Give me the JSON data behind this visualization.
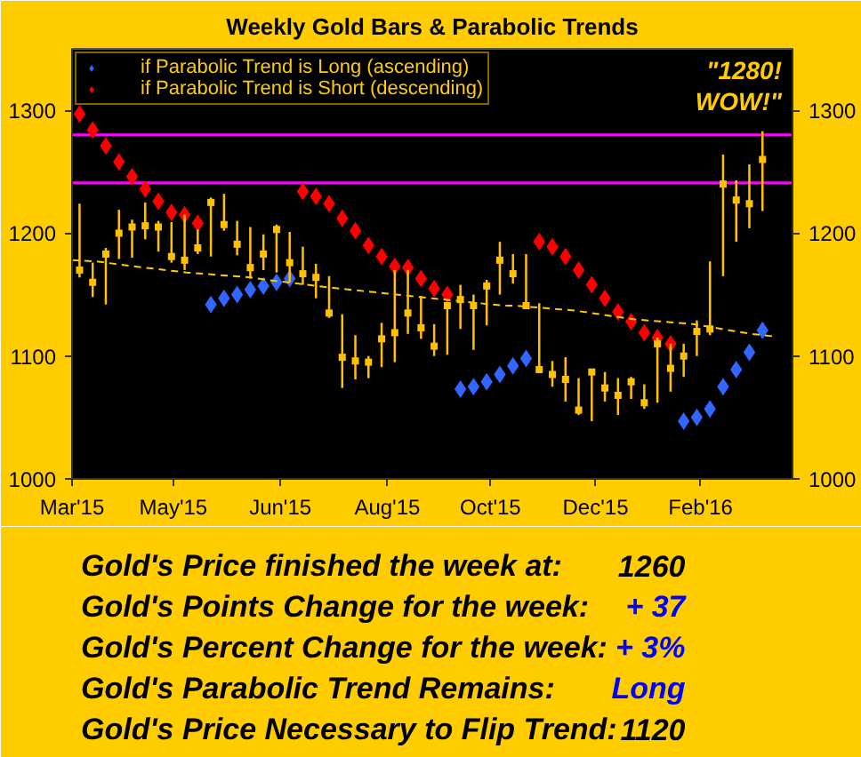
{
  "chart_data": {
    "type": "bar",
    "title": "Weekly Gold Bars & Parabolic Trends",
    "x": [
      "2015-03-13",
      "2015-03-20",
      "2015-03-27",
      "2015-04-03",
      "2015-04-10",
      "2015-04-17",
      "2015-04-24",
      "2015-05-01",
      "2015-05-08",
      "2015-05-15",
      "2015-05-22",
      "2015-05-29",
      "2015-06-05",
      "2015-06-12",
      "2015-06-19",
      "2015-06-26",
      "2015-07-03",
      "2015-07-10",
      "2015-07-17",
      "2015-07-24",
      "2015-07-31",
      "2015-08-07",
      "2015-08-14",
      "2015-08-21",
      "2015-08-28",
      "2015-09-04",
      "2015-09-11",
      "2015-09-18",
      "2015-09-25",
      "2015-10-02",
      "2015-10-09",
      "2015-10-16",
      "2015-10-23",
      "2015-10-30",
      "2015-11-06",
      "2015-11-13",
      "2015-11-20",
      "2015-11-27",
      "2015-12-04",
      "2015-12-11",
      "2015-12-18",
      "2015-12-25",
      "2016-01-01",
      "2016-01-08",
      "2016-01-15",
      "2016-01-22",
      "2016-01-29",
      "2016-02-05",
      "2016-02-12",
      "2016-02-19",
      "2016-02-26",
      "2016-03-04",
      "2016-03-11"
    ],
    "xlim": [
      "2015-03-09",
      "2016-03-27"
    ],
    "xticks": [
      {
        "value": "2015-03-09",
        "label": "Mar'15"
      },
      {
        "value": "2015-05-02",
        "label": "May'15"
      },
      {
        "value": "2015-06-28",
        "label": "Jun'15"
      },
      {
        "value": "2015-08-24",
        "label": "Aug'15"
      },
      {
        "value": "2015-10-18",
        "label": "Oct'15"
      },
      {
        "value": "2015-12-13",
        "label": "Dec'15"
      },
      {
        "value": "2016-02-07",
        "label": "Feb'16"
      }
    ],
    "ylim": [
      1000,
      1350
    ],
    "yticks": [
      1000,
      1100,
      1200,
      1300
    ],
    "y2lim": [
      1000,
      1350
    ],
    "y2ticks": [
      1000,
      1100,
      1200,
      1300
    ],
    "grid": false,
    "legend": "top left",
    "series": [
      {
        "color": "#ffc000",
        "base": [
          1164,
          1148,
          1142,
          1179,
          1180,
          1195,
          1185,
          1176,
          1170,
          1183,
          1181,
          1202,
          1182,
          1163,
          1170,
          1168,
          1160,
          1158,
          1147,
          1131,
          1074,
          1081,
          1082,
          1091,
          1095,
          1118,
          1114,
          1100,
          1101,
          1122,
          1105,
          1125,
          1150,
          1159,
          1140,
          1086,
          1075,
          1063,
          1052,
          1047,
          1063,
          1052,
          1065,
          1057,
          1062,
          1071,
          1083,
          1100,
          1117,
          1165,
          1193,
          1204,
          1218
        ],
        "values": [
          60,
          28,
          46,
          40,
          31,
          30,
          25,
          33,
          45,
          20,
          48,
          30,
          28,
          42,
          29,
          39,
          41,
          31,
          28,
          34,
          60,
          36,
          18,
          36,
          75,
          52,
          35,
          26,
          41,
          36,
          45,
          37,
          43,
          24,
          43,
          57,
          21,
          36,
          30,
          41,
          24,
          30,
          18,
          20,
          53,
          39,
          27,
          29,
          60,
          99,
          50,
          52,
          65
        ]
      },
      {
        "type": "scatter",
        "marker": "square",
        "color": "#ffc000",
        "values": [
          1170,
          1160,
          1183,
          1200,
          1205,
          1206,
          1205,
          1181,
          1178,
          1188,
          1225,
          1207,
          1191,
          1172,
          1183,
          1203,
          1176,
          1167,
          1164,
          1135,
          1099,
          1096,
          1095,
          1114,
          1119,
          1135,
          1123,
          1108,
          1141,
          1146,
          1141,
          1157,
          1178,
          1167,
          1141,
          1089,
          1085,
          1081,
          1056,
          1087,
          1074,
          1068,
          1079,
          1062,
          1110,
          1090,
          1100,
          1120,
          1122,
          1240,
          1227,
          1224,
          1260
        ]
      },
      {
        "type": "scatter",
        "marker": "diamond",
        "name": "if Parabolic Trend is Long (ascending)",
        "color": "#3366ff",
        "values": [
          null,
          null,
          null,
          null,
          null,
          null,
          null,
          null,
          null,
          null,
          1142,
          1147,
          1150,
          1154,
          1157,
          1160,
          1163,
          null,
          null,
          null,
          null,
          null,
          null,
          null,
          null,
          null,
          null,
          null,
          null,
          1073,
          1075,
          1079,
          1085,
          1092,
          1098,
          null,
          null,
          null,
          null,
          null,
          null,
          null,
          null,
          null,
          null,
          null,
          1047,
          1050,
          1057,
          1075,
          1089,
          1103,
          1121
        ]
      },
      {
        "type": "scatter",
        "marker": "diamond",
        "name": "if Parabolic Trend is Short (descending)",
        "color": "#ff0000",
        "values": [
          1297,
          1284,
          1271,
          1258,
          1246,
          1236,
          1226,
          1217,
          1215,
          1208,
          null,
          null,
          null,
          null,
          null,
          null,
          null,
          1234,
          1230,
          1224,
          1212,
          1202,
          1190,
          1181,
          1173,
          1172,
          1163,
          1155,
          1150,
          null,
          null,
          null,
          null,
          null,
          null,
          1193,
          1189,
          1181,
          1170,
          1158,
          1147,
          1136,
          1128,
          1119,
          1115,
          1110,
          null,
          null,
          null,
          null,
          null,
          null,
          null
        ]
      },
      {
        "type": "line",
        "line_style": "dashed",
        "color": "#ffcc00",
        "x": [
          "2015-03-09",
          "2015-03-22",
          "2015-04-11",
          "2015-05-09",
          "2015-06-12",
          "2015-06-21",
          "2015-07-23",
          "2015-08-23",
          "2015-09-23",
          "2015-10-25",
          "2015-10-31",
          "2015-12-02",
          "2016-01-02",
          "2016-02-03",
          "2016-03-05",
          "2016-03-17"
        ],
        "values": [
          1178,
          1177,
          1173,
          1168,
          1164,
          1162,
          1156,
          1151,
          1146,
          1141,
          1141,
          1137,
          1130,
          1126,
          1118,
          1116
        ]
      }
    ],
    "ref_lines": [
      {
        "axis": "y",
        "value": 1280,
        "color": "#ff00ff"
      },
      {
        "axis": "y",
        "value": 1241,
        "color": "#ff00ff"
      }
    ],
    "annotations": [
      "\"1280!\nWOW!\"",
      "Gold's Price finished the week at:",
      "1260",
      "Gold's Points Change for the week:",
      "+ 37",
      "Gold's Percent Change for the week:",
      "+ 3%",
      "Gold's Parabolic Trend Remains:",
      "Long",
      "Gold's Price Necessary to Flip Trend:",
      "1120"
    ]
  }
}
